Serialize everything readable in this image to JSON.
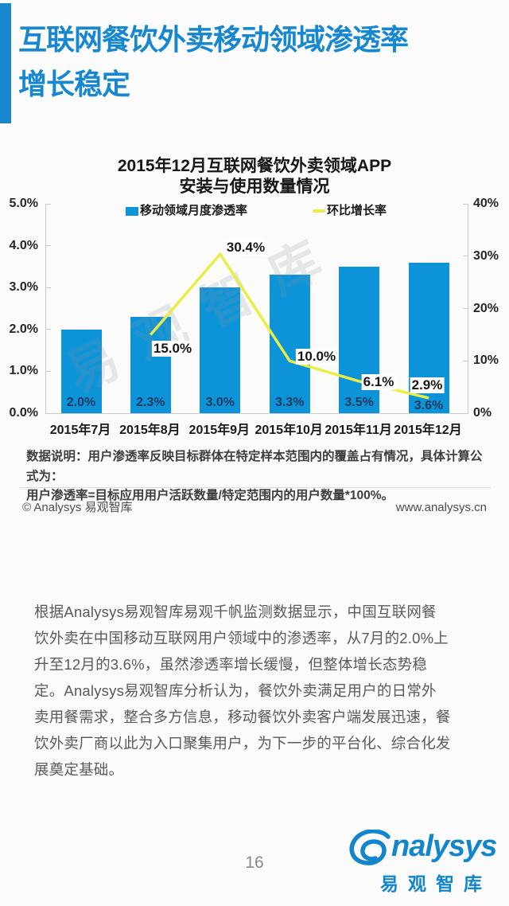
{
  "header": {
    "title_line1": "互联网餐饮外卖移动领域渗透率",
    "title_line2": "增长稳定",
    "accent_color": "#1787d0"
  },
  "chart": {
    "title_line1": "2015年12月互联网餐饮外卖领域APP",
    "title_line2": "安装与使用数量情况",
    "legend_bar": "移动领域月度渗透率",
    "legend_line": "环比增长率",
    "bar_color": "#0d93d8",
    "line_color": "#e9ed44"
  },
  "chart_data": {
    "type": "bar",
    "subtype": "bar+line combo, dual axis",
    "title": "2015年12月互联网餐饮外卖领域APP安装与使用数量情况",
    "categories": [
      "2015年7月",
      "2015年8月",
      "2015年9月",
      "2015年10月",
      "2015年11月",
      "2015年12月"
    ],
    "series": [
      {
        "name": "移动领域月度渗透率",
        "type": "bar",
        "axis": "left",
        "color": "#0d93d8",
        "values": [
          2.0,
          2.3,
          3.0,
          3.3,
          3.5,
          3.6
        ],
        "labels": [
          "2.0%",
          "2.3%",
          "3.0%",
          "3.3%",
          "3.5%",
          "3.6%"
        ]
      },
      {
        "name": "环比增长率",
        "type": "line",
        "axis": "right",
        "color": "#e9ed44",
        "values": [
          null,
          15.0,
          30.4,
          10.0,
          6.1,
          2.9
        ],
        "labels": [
          null,
          "15.0%",
          "30.4%",
          "10.0%",
          "6.1%",
          "2.9%"
        ]
      }
    ],
    "left_axis": {
      "min": 0,
      "max": 5,
      "ticks": [
        "5.0%",
        "4.0%",
        "3.0%",
        "2.0%",
        "1.0%",
        "0.0%"
      ]
    },
    "right_axis": {
      "min": 0,
      "max": 40,
      "ticks": [
        "40%",
        "30%",
        "20%",
        "10%",
        "0%"
      ]
    },
    "grid": false,
    "legend_position": "top"
  },
  "watermark": {
    "text": "易观智库"
  },
  "note": {
    "line1": "数据说明：用户渗透率反映目标群体在特定样本范围内的覆盖占有情况，具体计算公式为：",
    "line2": "用户渗透率=目标应用用户活跃数量/特定范围内的用户数量*100%。"
  },
  "figure_footer": {
    "copyright": "© Analysys 易观智库",
    "website": "www.analysys.cn"
  },
  "body": {
    "lines": [
      "根据Analysys易观智库易观千帆监测数据显示，中国互联网餐",
      "饮外卖在中国移动互联网用户领域中的渗透率，从7月的2.0%上",
      "升至12月的3.6%，虽然渗透率增长缓慢，但整体增长态势稳",
      "定。Analysys易观智库分析认为，餐饮外卖满足用户的日常外",
      "卖用餐需求，整合多方信息，移动餐饮外卖客户端发展迅速，餐",
      "饮外卖厂商以此为入口聚集用户，为下一步的平台化、综合化发",
      "展奠定基础。"
    ]
  },
  "page_footer": {
    "page_number": "16"
  },
  "logo": {
    "brand": "Analysys",
    "brand_suffix": "nalysys",
    "chinese": "易观智库",
    "color": "#1286cd"
  }
}
